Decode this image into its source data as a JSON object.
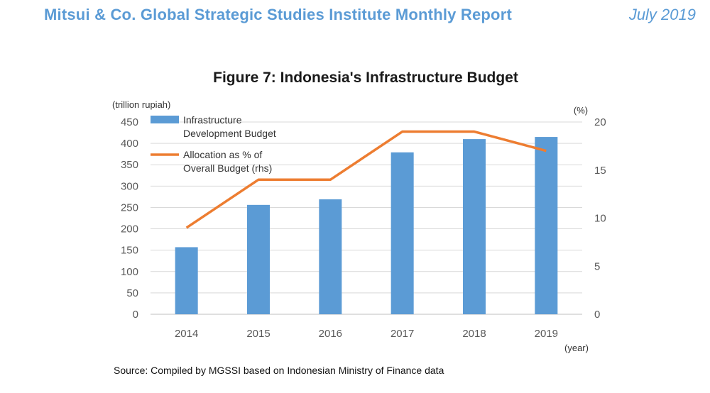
{
  "header": {
    "title": "Mitsui & Co. Global Strategic Studies Institute Monthly Report",
    "date": "July 2019"
  },
  "figure": {
    "title": "Figure 7: Indonesia's Infrastructure Budget",
    "source": "Source: Compiled by MGSSI based on Indonesian Ministry of Finance data"
  },
  "colors": {
    "bar": "#5b9bd5",
    "line": "#ed7d31",
    "header": "#5b9bd5"
  },
  "chart_data": {
    "type": "bar+line",
    "categories": [
      "2014",
      "2015",
      "2016",
      "2017",
      "2018",
      "2019"
    ],
    "series": [
      {
        "name": "Infrastructure Development Budget",
        "legend_lines": [
          "Infrastructure",
          "Development Budget"
        ],
        "type": "bar",
        "axis": "left",
        "values": [
          157,
          256,
          269,
          379,
          410,
          415
        ]
      },
      {
        "name": "Allocation as % of Overall Budget (rhs)",
        "legend_lines": [
          "Allocation as % of",
          "Overall Budget (rhs)"
        ],
        "type": "line",
        "axis": "right",
        "values": [
          9,
          14,
          14,
          19,
          19,
          17
        ]
      }
    ],
    "y_left": {
      "unit": "(trillion rupiah)",
      "ticks": [
        "0",
        "50",
        "100",
        "150",
        "200",
        "250",
        "300",
        "350",
        "400",
        "450"
      ],
      "ylim": [
        0,
        450
      ]
    },
    "y_right": {
      "unit": "(%)",
      "ticks": [
        "0",
        "5",
        "10",
        "15",
        "20"
      ],
      "ylim": [
        0,
        20
      ]
    },
    "xlabel": "(year)",
    "grid": true,
    "legend_position": "top-left"
  }
}
